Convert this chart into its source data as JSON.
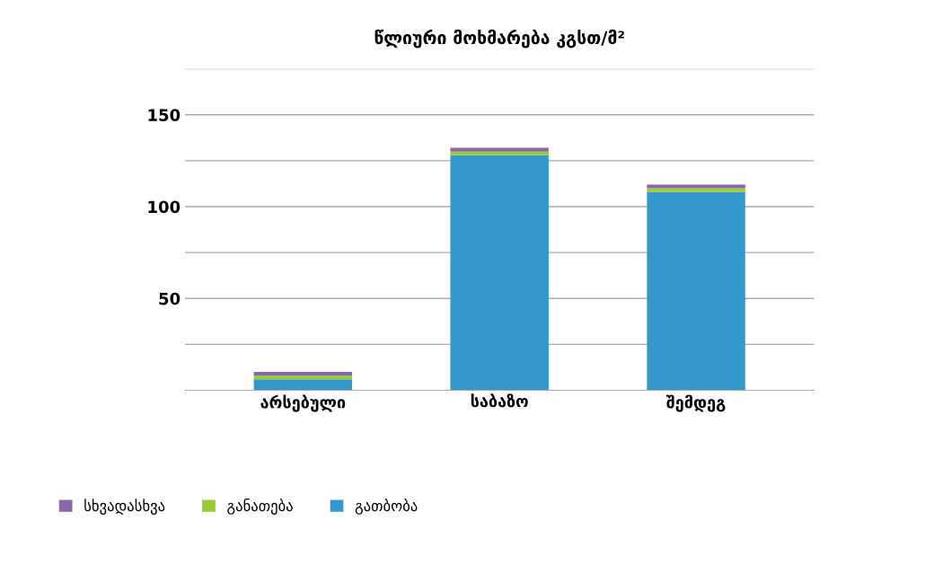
{
  "chart_data": {
    "type": "bar",
    "title": "წლიური მოხმარება კგსთ/მ²",
    "stacked": true,
    "categories": [
      "არსებული",
      "საბაზო",
      "შემდეგ"
    ],
    "series": [
      {
        "name": "გათბობა",
        "color": "#3399cc",
        "values": [
          6,
          128,
          108
        ]
      },
      {
        "name": "განათება",
        "color": "#99cc33",
        "values": [
          2,
          2,
          2
        ]
      },
      {
        "name": "სხვადასხვა",
        "color": "#8866aa",
        "values": [
          2,
          2,
          2
        ]
      }
    ],
    "ylim": [
      0,
      175
    ],
    "yticks": [
      {
        "value": 25,
        "label": null
      },
      50,
      {
        "value": 75,
        "label": null
      },
      100,
      {
        "value": 125,
        "label": null
      },
      150,
      {
        "value": 175,
        "label": null
      }
    ],
    "grid": "y",
    "legend": "bottom left"
  }
}
